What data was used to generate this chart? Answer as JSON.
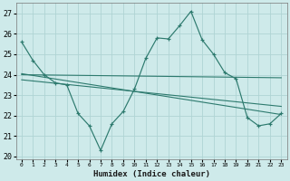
{
  "xlabel": "Humidex (Indice chaleur)",
  "background_color": "#ceeaea",
  "line_color": "#2d7a6e",
  "grid_color": "#afd4d4",
  "xlim": [
    -0.5,
    23.5
  ],
  "ylim": [
    19.85,
    27.5
  ],
  "yticks": [
    20,
    21,
    22,
    23,
    24,
    25,
    26,
    27
  ],
  "xticks": [
    0,
    1,
    2,
    3,
    4,
    5,
    6,
    7,
    8,
    9,
    10,
    11,
    12,
    13,
    14,
    15,
    16,
    17,
    18,
    19,
    20,
    21,
    22,
    23
  ],
  "main_x": [
    0,
    1,
    2,
    3,
    4,
    5,
    6,
    7,
    8,
    9,
    10,
    11,
    12,
    13,
    14,
    15,
    16,
    17,
    18,
    19,
    20,
    21,
    22,
    23
  ],
  "main_y": [
    25.6,
    24.7,
    24.0,
    23.6,
    23.5,
    22.1,
    21.5,
    20.3,
    21.6,
    22.2,
    23.3,
    24.8,
    25.8,
    25.75,
    26.4,
    27.1,
    25.7,
    25.0,
    24.1,
    23.8,
    21.9,
    21.5,
    21.6,
    22.1
  ],
  "line1_x": [
    0,
    23
  ],
  "line1_y": [
    24.0,
    23.85
  ],
  "line2_x": [
    0,
    23
  ],
  "line2_y": [
    24.05,
    22.05
  ],
  "line3_x": [
    0,
    23
  ],
  "line3_y": [
    23.75,
    22.45
  ],
  "ytick_fontsize": 6,
  "xtick_fontsize": 4.5,
  "xlabel_fontsize": 6.5
}
